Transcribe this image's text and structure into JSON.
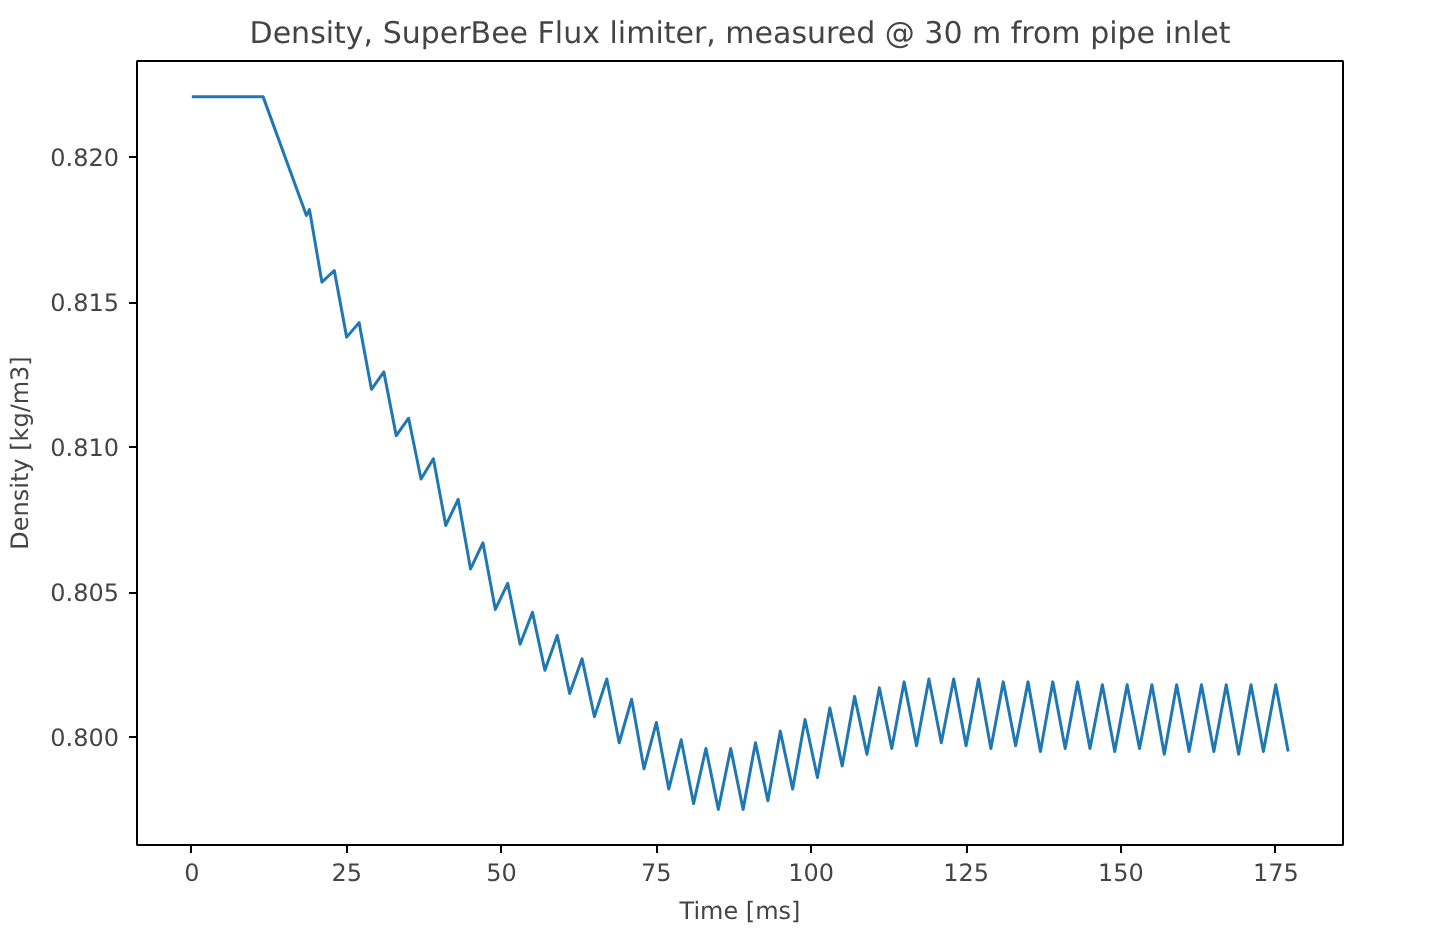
{
  "chart_data": {
    "type": "line",
    "title": "Density, SuperBee Flux limiter, measured @ 30 m from pipe inlet",
    "xlabel": "Time [ms]",
    "ylabel": "Density [kg/m3]",
    "xlim": [
      -8.85,
      185.85
    ],
    "ylim": [
      0.79627,
      0.82333
    ],
    "xticks": [
      0,
      25,
      50,
      75,
      100,
      125,
      150,
      175
    ],
    "yticks": [
      {
        "value": 0.8,
        "label": "0.800"
      },
      {
        "value": 0.805,
        "label": "0.805"
      },
      {
        "value": 0.81,
        "label": "0.810"
      },
      {
        "value": 0.815,
        "label": "0.815"
      },
      {
        "value": 0.82,
        "label": "0.820"
      }
    ],
    "grid": false,
    "marker": "none",
    "line_style": "solid",
    "series": [
      {
        "color": "#1f77b4",
        "x": [
          0,
          11.5,
          18.5,
          19,
          21,
          23,
          25,
          27,
          29,
          31,
          33,
          35,
          37,
          39,
          41,
          43,
          45,
          47,
          49,
          51,
          53,
          55,
          57,
          59,
          61,
          63,
          65,
          67,
          69,
          71,
          73,
          75,
          77,
          79,
          81,
          83,
          85,
          87,
          89,
          91,
          93,
          95,
          97,
          99,
          101,
          103,
          105,
          107,
          109,
          111,
          113,
          115,
          117,
          119,
          121,
          123,
          125,
          127,
          129,
          131,
          133,
          135,
          137,
          139,
          141,
          143,
          145,
          147,
          149,
          151,
          153,
          155,
          157,
          159,
          161,
          163,
          165,
          167,
          169,
          171,
          173,
          175,
          177
        ],
        "values": [
          0.8221,
          0.8221,
          0.818,
          0.8182,
          0.8157,
          0.8161,
          0.8138,
          0.8143,
          0.812,
          0.8126,
          0.8104,
          0.811,
          0.8089,
          0.8096,
          0.8073,
          0.8082,
          0.8058,
          0.8067,
          0.8044,
          0.8053,
          0.8032,
          0.8043,
          0.8023,
          0.8035,
          0.8015,
          0.8027,
          0.8007,
          0.802,
          0.7998,
          0.8013,
          0.7989,
          0.8005,
          0.7982,
          0.7999,
          0.7977,
          0.7996,
          0.7975,
          0.7996,
          0.7975,
          0.7998,
          0.7978,
          0.8002,
          0.7982,
          0.8006,
          0.7986,
          0.801,
          0.799,
          0.8014,
          0.7994,
          0.8017,
          0.7996,
          0.8019,
          0.7997,
          0.802,
          0.7998,
          0.802,
          0.7997,
          0.802,
          0.7996,
          0.8019,
          0.7997,
          0.8019,
          0.7995,
          0.8019,
          0.7996,
          0.8019,
          0.7996,
          0.8018,
          0.7995,
          0.8018,
          0.7996,
          0.8018,
          0.7994,
          0.8018,
          0.7995,
          0.8018,
          0.7995,
          0.8018,
          0.7994,
          0.8018,
          0.7995,
          0.8018,
          0.7995
        ]
      }
    ]
  }
}
